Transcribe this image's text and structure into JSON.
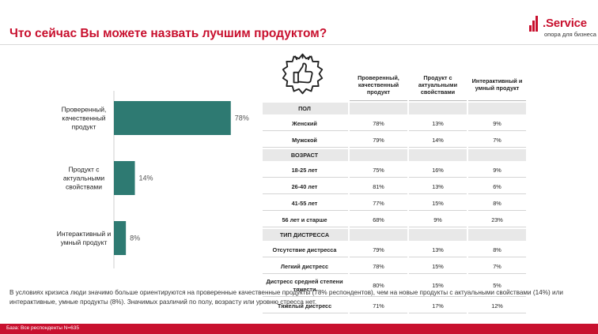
{
  "header": {
    "title": "Что сейчас Вы можете назвать лучшим продуктом?"
  },
  "logo": {
    "brand": ".Service",
    "tagline": "опора для бизнеса"
  },
  "chart_data": {
    "type": "bar",
    "orientation": "horizontal",
    "categories": [
      "Проверенный, качественный продукт",
      "Продукт с актуальными свойствами",
      "Интерактивный и умный продукт"
    ],
    "category_lines": [
      [
        "Проверенный,",
        "качественный",
        "продукт"
      ],
      [
        "Продукт с",
        "актуальными",
        "свойствами"
      ],
      [
        "Интерактивный и",
        "умный продукт"
      ]
    ],
    "values": [
      78,
      14,
      8
    ],
    "value_labels": [
      "78%",
      "14%",
      "8%"
    ],
    "xlim": [
      0,
      100
    ],
    "bar_color": "#2e7a72"
  },
  "table": {
    "columns": [
      [
        "Проверенный,",
        "качественный",
        "продукт"
      ],
      [
        "Продукт с",
        "актуальными",
        "свойствами"
      ],
      [
        "Интерактивный и",
        "умный продукт"
      ]
    ],
    "groups": [
      {
        "name": "ПОЛ",
        "rows": [
          {
            "label": "Женский",
            "values": [
              "78%",
              "13%",
              "9%"
            ]
          },
          {
            "label": "Мужской",
            "values": [
              "79%",
              "14%",
              "7%"
            ]
          }
        ]
      },
      {
        "name": "ВОЗРАСТ",
        "rows": [
          {
            "label": "18-25 лет",
            "values": [
              "75%",
              "16%",
              "9%"
            ]
          },
          {
            "label": "26-40 лет",
            "values": [
              "81%",
              "13%",
              "6%"
            ]
          },
          {
            "label": "41-55 лет",
            "values": [
              "77%",
              "15%",
              "8%"
            ]
          },
          {
            "label": "56 лет и старше",
            "values": [
              "68%",
              "9%",
              "23%"
            ]
          }
        ]
      },
      {
        "name": "ТИП ДИСТРЕССА",
        "rows": [
          {
            "label": "Отсутствие дистресса",
            "values": [
              "79%",
              "13%",
              "8%"
            ]
          },
          {
            "label": "Легкий дистресс",
            "values": [
              "78%",
              "15%",
              "7%"
            ]
          },
          {
            "label": "Дистресс средней степени тяжести",
            "label_lines": [
              "Дистресс средней степени",
              "тяжести"
            ],
            "values": [
              "80%",
              "15%",
              "5%"
            ]
          },
          {
            "label": "Тяжелый дистресс",
            "values": [
              "71%",
              "17%",
              "12%"
            ]
          }
        ]
      }
    ]
  },
  "summary": "В условиях кризиса люди значимо больше ориентируются на проверенные качественные продукты (78% респондентов), чем на новые продукты с актуальными свойствами (14%) или интерактивные, умные продукты (8%). Значимых различий по полу, возрасту или уровню стресса нет.",
  "footer": "База: Все респонденты N=635",
  "icons": {
    "thumb": "thumbs-up-badge-icon",
    "logo": "bar-chart-logo-icon"
  },
  "colors": {
    "accent": "#c8102e",
    "bar": "#2e7a72"
  }
}
